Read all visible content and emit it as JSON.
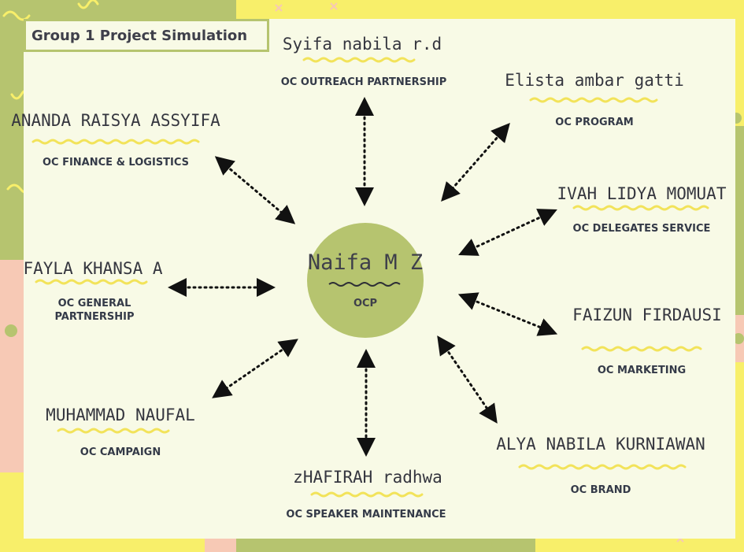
{
  "title": "Group 1 Project Simulation",
  "center": {
    "name": "Naifa M Z",
    "role": "OCP"
  },
  "members": [
    {
      "id": "syifa",
      "name": "Syifa nabila r.d",
      "role": "OC OUTREACH PARTNERSHIP"
    },
    {
      "id": "elista",
      "name": "Elista ambar gatti",
      "role": "OC PROGRAM"
    },
    {
      "id": "ananda",
      "name": "ANANDA RAISYA ASSYIFA",
      "role": "OC FINANCE & LOGISTICS"
    },
    {
      "id": "ivah",
      "name": "IVAH LIDYA MOMUAT",
      "role": "OC DELEGATES SERVICE"
    },
    {
      "id": "fayla",
      "name": "FAYLA KHANSA A",
      "role_line1": "OC GENERAL",
      "role_line2": "PARTNERSHIP"
    },
    {
      "id": "faizun",
      "name": "FAIZUN FIRDAUSI",
      "role": "OC MARKETING"
    },
    {
      "id": "naufal",
      "name": "MUHAMMAD NAUFAL",
      "role": "OC CAMPAIGN"
    },
    {
      "id": "alya",
      "name": "ALYA NABILA KURNIAWAN",
      "role": "OC BRAND"
    },
    {
      "id": "zhafirah",
      "name": "zHAFIRAH radhwa",
      "role": "OC SPEAKER MAINTENANCE"
    }
  ],
  "colors": {
    "accent_green": "#b6c46f",
    "underline_yellow": "#f2e35a",
    "panel": "#f8fae6",
    "text": "#3e3f4a"
  }
}
